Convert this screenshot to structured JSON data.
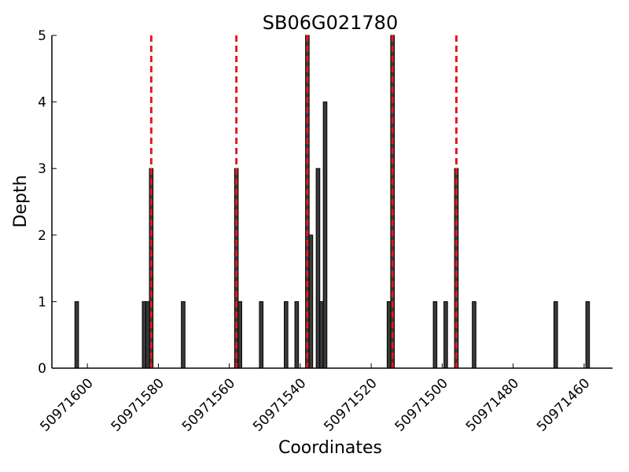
{
  "chart_data": {
    "type": "bar",
    "title": "SB06G021780",
    "xlabel": "Coordinates",
    "ylabel": "Depth",
    "xlim": [
      50971610,
      50971452
    ],
    "ylim": [
      0,
      5
    ],
    "x_reversed": true,
    "x_ticks": [
      50971600,
      50971580,
      50971560,
      50971540,
      50971520,
      50971500,
      50971480,
      50971460
    ],
    "x_tick_labels": [
      "50971600",
      "50971580",
      "50971560",
      "50971540",
      "50971520",
      "50971500",
      "50971480",
      "50971460"
    ],
    "y_ticks": [
      0,
      1,
      2,
      3,
      4,
      5
    ],
    "y_tick_labels": [
      "0",
      "1",
      "2",
      "3",
      "4",
      "5"
    ],
    "grid": false,
    "bars": [
      {
        "x": 50971603,
        "value": 1
      },
      {
        "x": 50971584,
        "value": 1
      },
      {
        "x": 50971583,
        "value": 1
      },
      {
        "x": 50971582,
        "value": 3
      },
      {
        "x": 50971573,
        "value": 1
      },
      {
        "x": 50971558,
        "value": 3
      },
      {
        "x": 50971557,
        "value": 1
      },
      {
        "x": 50971551,
        "value": 1
      },
      {
        "x": 50971544,
        "value": 1
      },
      {
        "x": 50971541,
        "value": 1
      },
      {
        "x": 50971538,
        "value": 5
      },
      {
        "x": 50971537,
        "value": 2
      },
      {
        "x": 50971535,
        "value": 3
      },
      {
        "x": 50971534,
        "value": 1
      },
      {
        "x": 50971533,
        "value": 4
      },
      {
        "x": 50971515,
        "value": 1
      },
      {
        "x": 50971514,
        "value": 5
      },
      {
        "x": 50971502,
        "value": 1
      },
      {
        "x": 50971499,
        "value": 1
      },
      {
        "x": 50971496,
        "value": 3
      },
      {
        "x": 50971491,
        "value": 1
      },
      {
        "x": 50971468,
        "value": 1
      },
      {
        "x": 50971459,
        "value": 1
      }
    ],
    "reference_lines": {
      "style": "dashed",
      "color": "#e41a1c",
      "x": [
        50971582,
        50971558,
        50971538,
        50971514,
        50971496
      ]
    },
    "bar_color": "#3a3a3a"
  }
}
